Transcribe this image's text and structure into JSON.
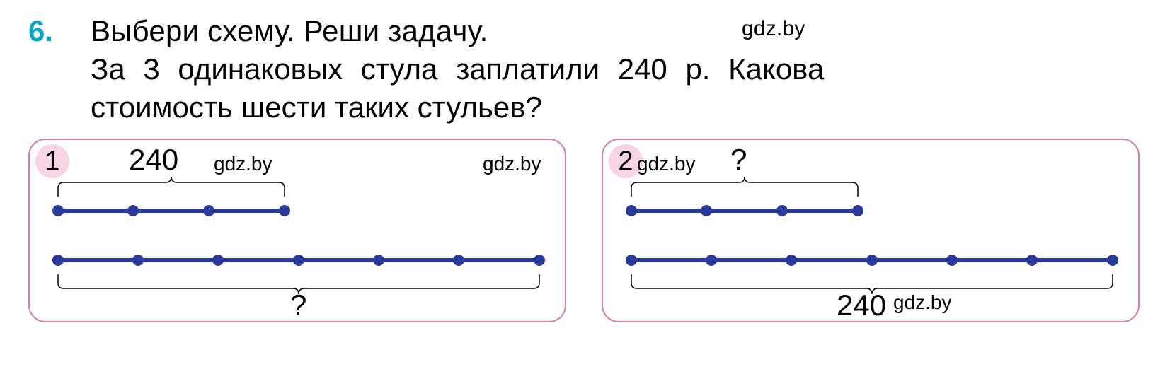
{
  "colors": {
    "problem_number": "#0aa5c5",
    "text": "#000000",
    "panel_border": "#d87fa8",
    "badge_bg": "#f8d5e5",
    "line_stroke": "#2a3a9b",
    "dot_fill": "#2a3a9b",
    "bracket_stroke": "#000000"
  },
  "chart": {
    "line_width": 6,
    "dot_radius": 8,
    "bracket_width": 1.5
  },
  "problem": {
    "number": "6.",
    "line1": "Выбери схему. Реши задачу.",
    "line2": "За 3 одинаковых стула заплатили 240 р. Какова",
    "line3": "стоимость шести таких стульев?"
  },
  "watermarks": {
    "top": "gdz.by",
    "p1a": "gdz.by",
    "p1b": "gdz.by",
    "p2a": "gdz.by",
    "p2b": "gdz.by"
  },
  "panel1": {
    "badge": "1",
    "top_label": "240",
    "bottom_label": "?"
  },
  "panel2": {
    "badge": "2",
    "top_label": "?",
    "bottom_label": "240"
  }
}
